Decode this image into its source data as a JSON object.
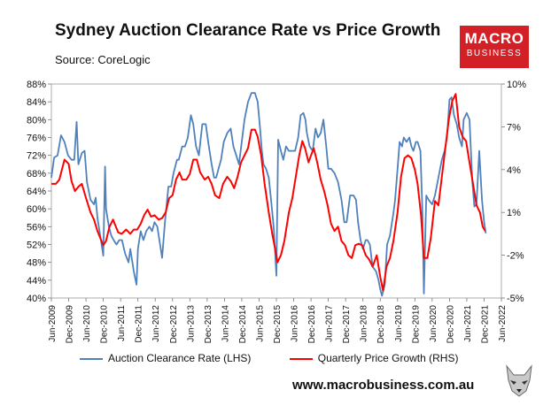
{
  "header": {
    "title": "Sydney Auction Clearance Rate vs Price Growth",
    "source": "Source: CoreLogic"
  },
  "logo": {
    "line1": "MACRO",
    "line2": "BUSINESS"
  },
  "footer": {
    "url": "www.macrobusiness.com.au"
  },
  "colors": {
    "lhs_series": "#4f81bd",
    "rhs_series": "#ff0000",
    "logo_bg": "#d31f26"
  },
  "chart_data": {
    "type": "line",
    "title": "Sydney Auction Clearance Rate vs Price Growth",
    "y_left": {
      "min": 40,
      "max": 88,
      "step": 4,
      "suffix": "%",
      "ticks": [
        "40%",
        "44%",
        "48%",
        "52%",
        "56%",
        "60%",
        "64%",
        "68%",
        "72%",
        "76%",
        "80%",
        "84%",
        "88%"
      ]
    },
    "y_right": {
      "min": -5,
      "max": 10,
      "suffix": "%",
      "ticks": [
        "-5%",
        "-2%",
        "1%",
        "4%",
        "7%",
        "10%"
      ]
    },
    "x_ticks": [
      "Jun-2009",
      "Dec-2009",
      "Jun-2010",
      "Dec-2010",
      "Jun-2011",
      "Dec-2011",
      "Jun-2012",
      "Dec-2012",
      "Jun-2013",
      "Dec-2013",
      "Jun-2014",
      "Dec-2014",
      "Jun-2015",
      "Dec-2015",
      "Jun-2016",
      "Dec-2016",
      "Jun-2017",
      "Dec-2017",
      "Jun-2018",
      "Dec-2018",
      "Jun-2019",
      "Dec-2019",
      "Jun-2020",
      "Dec-2020",
      "Jun-2021",
      "Dec-2021",
      "Jun-2022"
    ],
    "series": [
      {
        "name": "Auction Clearance Rate (LHS)",
        "axis": "left",
        "points": [
          [
            2009.42,
            67
          ],
          [
            2009.5,
            71.5
          ],
          [
            2009.6,
            72
          ],
          [
            2009.7,
            76.5
          ],
          [
            2009.8,
            75
          ],
          [
            2009.9,
            72
          ],
          [
            2010.0,
            71
          ],
          [
            2010.08,
            71
          ],
          [
            2010.15,
            79.5
          ],
          [
            2010.2,
            70
          ],
          [
            2010.3,
            72.5
          ],
          [
            2010.38,
            73
          ],
          [
            2010.45,
            66
          ],
          [
            2010.55,
            62
          ],
          [
            2010.65,
            61
          ],
          [
            2010.7,
            62.5
          ],
          [
            2010.75,
            58
          ],
          [
            2010.85,
            53
          ],
          [
            2010.92,
            49.5
          ],
          [
            2010.97,
            69.5
          ],
          [
            2011.0,
            60
          ],
          [
            2011.08,
            56
          ],
          [
            2011.15,
            54
          ],
          [
            2011.22,
            53
          ],
          [
            2011.3,
            52
          ],
          [
            2011.38,
            53
          ],
          [
            2011.46,
            53
          ],
          [
            2011.55,
            50
          ],
          [
            2011.65,
            48
          ],
          [
            2011.7,
            51
          ],
          [
            2011.8,
            46
          ],
          [
            2011.88,
            43
          ],
          [
            2011.92,
            51
          ],
          [
            2012.0,
            55
          ],
          [
            2012.08,
            53
          ],
          [
            2012.16,
            55
          ],
          [
            2012.25,
            56
          ],
          [
            2012.33,
            55
          ],
          [
            2012.4,
            57
          ],
          [
            2012.48,
            56
          ],
          [
            2012.56,
            52
          ],
          [
            2012.62,
            49
          ],
          [
            2012.7,
            57
          ],
          [
            2012.8,
            65
          ],
          [
            2012.88,
            65
          ],
          [
            2012.95,
            68
          ],
          [
            2013.05,
            71
          ],
          [
            2013.1,
            71
          ],
          [
            2013.2,
            74
          ],
          [
            2013.28,
            74
          ],
          [
            2013.36,
            76
          ],
          [
            2013.45,
            81
          ],
          [
            2013.52,
            79
          ],
          [
            2013.6,
            74
          ],
          [
            2013.68,
            72
          ],
          [
            2013.78,
            79
          ],
          [
            2013.88,
            79
          ],
          [
            2013.95,
            75
          ],
          [
            2014.05,
            70
          ],
          [
            2014.12,
            67
          ],
          [
            2014.18,
            67
          ],
          [
            2014.25,
            69
          ],
          [
            2014.32,
            71
          ],
          [
            2014.4,
            75
          ],
          [
            2014.5,
            77
          ],
          [
            2014.6,
            78
          ],
          [
            2014.68,
            74
          ],
          [
            2014.76,
            72
          ],
          [
            2014.84,
            70
          ],
          [
            2014.92,
            75
          ],
          [
            2015.0,
            80
          ],
          [
            2015.1,
            84
          ],
          [
            2015.2,
            86
          ],
          [
            2015.3,
            86
          ],
          [
            2015.38,
            84
          ],
          [
            2015.45,
            78
          ],
          [
            2015.5,
            73
          ],
          [
            2015.55,
            70
          ],
          [
            2015.62,
            69
          ],
          [
            2015.7,
            67
          ],
          [
            2015.78,
            61
          ],
          [
            2015.84,
            56
          ],
          [
            2015.9,
            48
          ],
          [
            2015.92,
            45
          ],
          [
            2015.97,
            75.5
          ],
          [
            2016.05,
            73
          ],
          [
            2016.12,
            71
          ],
          [
            2016.2,
            74
          ],
          [
            2016.28,
            73
          ],
          [
            2016.36,
            73
          ],
          [
            2016.46,
            73
          ],
          [
            2016.55,
            76
          ],
          [
            2016.62,
            81
          ],
          [
            2016.7,
            81.5
          ],
          [
            2016.76,
            80
          ],
          [
            2016.8,
            77
          ],
          [
            2016.88,
            74
          ],
          [
            2016.97,
            73
          ],
          [
            2017.05,
            78
          ],
          [
            2017.12,
            76
          ],
          [
            2017.2,
            77
          ],
          [
            2017.28,
            80
          ],
          [
            2017.36,
            74
          ],
          [
            2017.42,
            69
          ],
          [
            2017.5,
            69
          ],
          [
            2017.6,
            68
          ],
          [
            2017.7,
            66
          ],
          [
            2017.8,
            62
          ],
          [
            2017.88,
            57
          ],
          [
            2017.95,
            57
          ],
          [
            2018.05,
            63
          ],
          [
            2018.15,
            63
          ],
          [
            2018.22,
            62
          ],
          [
            2018.28,
            57
          ],
          [
            2018.35,
            53
          ],
          [
            2018.42,
            51
          ],
          [
            2018.5,
            53
          ],
          [
            2018.55,
            53
          ],
          [
            2018.62,
            52
          ],
          [
            2018.7,
            47
          ],
          [
            2018.8,
            46
          ],
          [
            2018.87,
            44
          ],
          [
            2018.92,
            42
          ],
          [
            2018.97,
            40.5
          ],
          [
            2019.05,
            43
          ],
          [
            2019.12,
            52
          ],
          [
            2019.2,
            54
          ],
          [
            2019.3,
            59
          ],
          [
            2019.35,
            62
          ],
          [
            2019.42,
            69
          ],
          [
            2019.48,
            75
          ],
          [
            2019.55,
            74
          ],
          [
            2019.6,
            76
          ],
          [
            2019.68,
            75
          ],
          [
            2019.76,
            76
          ],
          [
            2019.82,
            74
          ],
          [
            2019.88,
            73
          ],
          [
            2019.95,
            75
          ],
          [
            2020.0,
            75
          ],
          [
            2020.08,
            73
          ],
          [
            2020.14,
            59
          ],
          [
            2020.18,
            41
          ],
          [
            2020.25,
            63
          ],
          [
            2020.32,
            62
          ],
          [
            2020.42,
            61
          ],
          [
            2020.5,
            63
          ],
          [
            2020.6,
            67
          ],
          [
            2020.7,
            71
          ],
          [
            2020.78,
            73
          ],
          [
            2020.85,
            76
          ],
          [
            2020.92,
            84.5
          ],
          [
            2020.98,
            85
          ],
          [
            2021.05,
            81
          ],
          [
            2021.13,
            79
          ],
          [
            2021.2,
            76
          ],
          [
            2021.28,
            74
          ],
          [
            2021.33,
            80
          ],
          [
            2021.42,
            81.5
          ],
          [
            2021.5,
            80
          ],
          [
            2021.58,
            66
          ],
          [
            2021.64,
            60.5
          ],
          [
            2021.7,
            61
          ],
          [
            2021.78,
            73
          ],
          [
            2021.86,
            62
          ],
          [
            2021.92,
            57
          ],
          [
            2021.97,
            54.5
          ]
        ]
      },
      {
        "name": "Quarterly Price Growth (RHS)",
        "axis": "right",
        "points": [
          [
            2009.42,
            3.0
          ],
          [
            2009.55,
            3.0
          ],
          [
            2009.65,
            3.3
          ],
          [
            2009.8,
            4.7
          ],
          [
            2009.92,
            4.4
          ],
          [
            2010.0,
            3.2
          ],
          [
            2010.1,
            2.5
          ],
          [
            2010.2,
            2.8
          ],
          [
            2010.3,
            3.0
          ],
          [
            2010.42,
            2.0
          ],
          [
            2010.55,
            1.0
          ],
          [
            2010.65,
            0.5
          ],
          [
            2010.75,
            -0.3
          ],
          [
            2010.85,
            -0.9
          ],
          [
            2010.92,
            -1.3
          ],
          [
            2011.0,
            -1.0
          ],
          [
            2011.1,
            0
          ],
          [
            2011.2,
            0.5
          ],
          [
            2011.25,
            0.2
          ],
          [
            2011.35,
            -0.4
          ],
          [
            2011.45,
            -0.5
          ],
          [
            2011.58,
            -0.2
          ],
          [
            2011.7,
            -0.5
          ],
          [
            2011.8,
            -0.2
          ],
          [
            2011.9,
            -0.2
          ],
          [
            2012.0,
            0.2
          ],
          [
            2012.1,
            0.8
          ],
          [
            2012.2,
            1.2
          ],
          [
            2012.3,
            0.7
          ],
          [
            2012.4,
            0.8
          ],
          [
            2012.52,
            0.5
          ],
          [
            2012.62,
            0.6
          ],
          [
            2012.72,
            1.0
          ],
          [
            2012.82,
            2.0
          ],
          [
            2012.92,
            2.2
          ],
          [
            2013.02,
            3.3
          ],
          [
            2013.12,
            3.8
          ],
          [
            2013.2,
            3.3
          ],
          [
            2013.32,
            3.3
          ],
          [
            2013.42,
            3.7
          ],
          [
            2013.52,
            4.7
          ],
          [
            2013.62,
            4.7
          ],
          [
            2013.72,
            3.8
          ],
          [
            2013.85,
            3.3
          ],
          [
            2013.95,
            3.5
          ],
          [
            2014.05,
            3.0
          ],
          [
            2014.15,
            2.2
          ],
          [
            2014.27,
            2.0
          ],
          [
            2014.38,
            3.0
          ],
          [
            2014.5,
            3.5
          ],
          [
            2014.6,
            3.2
          ],
          [
            2014.7,
            2.7
          ],
          [
            2014.8,
            3.5
          ],
          [
            2014.9,
            4.5
          ],
          [
            2015.0,
            5.0
          ],
          [
            2015.1,
            5.5
          ],
          [
            2015.2,
            6.8
          ],
          [
            2015.3,
            6.8
          ],
          [
            2015.38,
            6.3
          ],
          [
            2015.48,
            5.0
          ],
          [
            2015.58,
            3.0
          ],
          [
            2015.7,
            1.0
          ],
          [
            2015.8,
            -0.5
          ],
          [
            2015.88,
            -1.5
          ],
          [
            2015.95,
            -2.5
          ],
          [
            2016.05,
            -2.0
          ],
          [
            2016.15,
            -1.0
          ],
          [
            2016.28,
            1.0
          ],
          [
            2016.38,
            2.0
          ],
          [
            2016.48,
            3.5
          ],
          [
            2016.58,
            5.0
          ],
          [
            2016.67,
            6.0
          ],
          [
            2016.75,
            5.5
          ],
          [
            2016.85,
            4.5
          ],
          [
            2016.92,
            5.0
          ],
          [
            2017.0,
            5.5
          ],
          [
            2017.1,
            4.5
          ],
          [
            2017.2,
            3.3
          ],
          [
            2017.3,
            2.5
          ],
          [
            2017.4,
            1.5
          ],
          [
            2017.5,
            0.2
          ],
          [
            2017.6,
            -0.3
          ],
          [
            2017.7,
            0
          ],
          [
            2017.8,
            -1.0
          ],
          [
            2017.9,
            -1.3
          ],
          [
            2018.0,
            -2.0
          ],
          [
            2018.1,
            -2.2
          ],
          [
            2018.2,
            -1.3
          ],
          [
            2018.3,
            -1.2
          ],
          [
            2018.4,
            -1.3
          ],
          [
            2018.5,
            -2.0
          ],
          [
            2018.6,
            -2.3
          ],
          [
            2018.7,
            -2.8
          ],
          [
            2018.82,
            -2.0
          ],
          [
            2018.92,
            -3.5
          ],
          [
            2019.0,
            -4.5
          ],
          [
            2019.1,
            -2.8
          ],
          [
            2019.2,
            -2.2
          ],
          [
            2019.3,
            -1.0
          ],
          [
            2019.42,
            1.0
          ],
          [
            2019.52,
            3.5
          ],
          [
            2019.62,
            4.8
          ],
          [
            2019.72,
            5.0
          ],
          [
            2019.82,
            4.8
          ],
          [
            2019.92,
            4.0
          ],
          [
            2020.0,
            3.0
          ],
          [
            2020.1,
            0.8
          ],
          [
            2020.18,
            -2.2
          ],
          [
            2020.28,
            -2.2
          ],
          [
            2020.38,
            -0.8
          ],
          [
            2020.5,
            1.8
          ],
          [
            2020.6,
            1.5
          ],
          [
            2020.7,
            3.5
          ],
          [
            2020.8,
            5.5
          ],
          [
            2020.9,
            7.5
          ],
          [
            2021.0,
            8.8
          ],
          [
            2021.1,
            9.3
          ],
          [
            2021.2,
            7.0
          ],
          [
            2021.3,
            6.3
          ],
          [
            2021.4,
            6.0
          ],
          [
            2021.5,
            4.5
          ],
          [
            2021.6,
            3.0
          ],
          [
            2021.7,
            1.5
          ],
          [
            2021.8,
            1.0
          ],
          [
            2021.88,
            0
          ],
          [
            2021.95,
            -0.3
          ]
        ]
      }
    ]
  }
}
